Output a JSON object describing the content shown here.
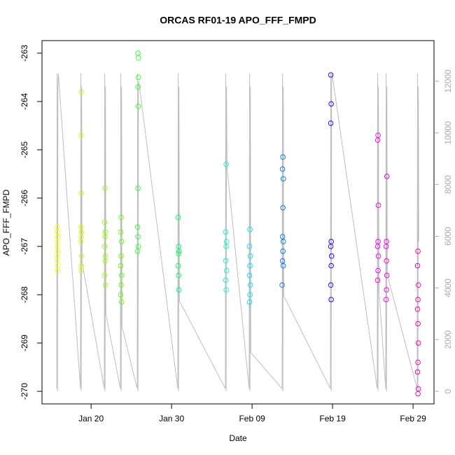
{
  "chart_data": {
    "type": "scatter",
    "title": "ORCAS RF01-19 APO_FFF_FMPD",
    "x_label": "Date",
    "y_label": "APO_FFF_FMPD",
    "xlim": [
      13.9,
      62.6
    ],
    "xticks": [
      {
        "value": 20,
        "label": "Jan 20"
      },
      {
        "value": 30,
        "label": "Jan 30"
      },
      {
        "value": 40,
        "label": "Feb 09"
      },
      {
        "value": 50,
        "label": "Feb 19"
      },
      {
        "value": 60,
        "label": "Feb 29"
      }
    ],
    "ylim": [
      -270.26,
      -262.74
    ],
    "yticks": [
      -263,
      -264,
      -265,
      -266,
      -267,
      -268,
      -269,
      -270
    ],
    "y2lim": [
      -488,
      13571
    ],
    "y2ticks": [
      0,
      2000,
      4000,
      6000,
      8000,
      10000,
      12000
    ],
    "series": [
      {
        "type": "line",
        "axis": "y2",
        "color": "#bebebe",
        "x": [
          15.73,
          15.78,
          15.83,
          15.88,
          15.93,
          18.68,
          18.73,
          18.78,
          18.83,
          18.88,
          21.64,
          21.69,
          21.74,
          21.79,
          21.84,
          23.64,
          23.69,
          23.74,
          23.79,
          23.84,
          25.73,
          25.78,
          25.83,
          25.88,
          25.93,
          30.77,
          30.82,
          30.87,
          30.92,
          30.97,
          36.68,
          36.73,
          36.78,
          36.83,
          36.88,
          39.64,
          39.69,
          39.74,
          39.79,
          39.84,
          43.73,
          43.78,
          43.83,
          43.88,
          43.93,
          49.73,
          49.78,
          49.83,
          49.88,
          49.93,
          55.55,
          55.6,
          55.65,
          55.7,
          55.75,
          56.6,
          56.65,
          56.7,
          56.75,
          56.8,
          60.51,
          60.56,
          60.61,
          60.66,
          60.71
        ],
        "values": [
          100,
          12300,
          0,
          11800,
          12300,
          100,
          12300,
          0,
          11800,
          5000,
          100,
          12300,
          0,
          11800,
          3000,
          100,
          12300,
          0,
          11800,
          2500,
          100,
          12300,
          0,
          11800,
          12000,
          100,
          12300,
          0,
          11800,
          3500,
          100,
          12300,
          0,
          11800,
          8700,
          100,
          12300,
          0,
          11800,
          1500,
          100,
          12300,
          0,
          11800,
          3700,
          100,
          12300,
          0,
          11800,
          12300,
          100,
          12300,
          0,
          11800,
          4000,
          100,
          12300,
          0,
          11800,
          4500,
          100,
          12300,
          0,
          11800,
          5800
        ]
      },
      {
        "type": "scatter",
        "color": "#f0ff00",
        "x": [
          15.78,
          15.83,
          15.88,
          15.78,
          15.83,
          15.88,
          15.78,
          15.83,
          15.88,
          15.83
        ],
        "values": [
          -266.6,
          -266.7,
          -266.8,
          -266.9,
          -267.0,
          -267.1,
          -267.2,
          -267.3,
          -267.4,
          -267.5
        ]
      },
      {
        "type": "scatter",
        "color": "#ccff00",
        "x": [
          18.78,
          18.73,
          18.78,
          18.73,
          18.83,
          18.78,
          18.73,
          18.83,
          18.78,
          18.73
        ],
        "values": [
          -263.8,
          -264.7,
          -265.9,
          -266.6,
          -266.7,
          -266.8,
          -266.9,
          -267.2,
          -267.4,
          -267.5
        ]
      },
      {
        "type": "scatter",
        "color": "#99ff00",
        "x": [
          21.74,
          21.69,
          21.79,
          21.74,
          21.69,
          21.79,
          21.74,
          21.69,
          21.79
        ],
        "values": [
          -265.8,
          -266.5,
          -266.7,
          -266.8,
          -267.0,
          -267.2,
          -267.3,
          -267.6,
          -267.8
        ]
      },
      {
        "type": "scatter",
        "color": "#66ff00",
        "x": [
          23.74,
          23.69,
          23.79,
          23.74,
          23.69,
          23.79,
          23.74,
          23.69,
          23.79
        ],
        "values": [
          -266.4,
          -266.7,
          -266.9,
          -267.2,
          -267.4,
          -267.6,
          -267.8,
          -268.0,
          -268.15
        ]
      },
      {
        "type": "scatter",
        "color": "#33ff33",
        "x": [
          25.83,
          25.88,
          25.88,
          25.83,
          25.88,
          25.83,
          25.78,
          25.83,
          25.88,
          25.78
        ],
        "values": [
          -263.0,
          -263.1,
          -263.5,
          -263.7,
          -264.1,
          -265.8,
          -266.6,
          -266.8,
          -267.0,
          -267.1
        ]
      },
      {
        "type": "scatter",
        "color": "#00ff66",
        "x": [
          30.82,
          30.87,
          30.92,
          30.87,
          30.82,
          30.87,
          30.92
        ],
        "values": [
          -266.4,
          -267.0,
          -267.1,
          -267.15,
          -267.4,
          -267.6,
          -267.9
        ]
      },
      {
        "type": "scatter",
        "color": "#00ffcc",
        "x": [
          36.78,
          36.73,
          36.83,
          36.78,
          36.73,
          36.83,
          36.73,
          36.78
        ],
        "values": [
          -265.3,
          -266.7,
          -266.9,
          -267.0,
          -267.3,
          -267.5,
          -267.7,
          -267.9
        ]
      },
      {
        "type": "scatter",
        "color": "#00e5ff",
        "x": [
          39.74,
          39.69,
          39.79,
          39.74,
          39.69,
          39.79,
          39.74,
          39.69
        ],
        "values": [
          -266.65,
          -267.0,
          -267.2,
          -267.4,
          -267.6,
          -267.8,
          -268.0,
          -268.15
        ]
      },
      {
        "type": "scatter",
        "color": "#0080ff",
        "x": [
          43.83,
          43.78,
          43.88,
          43.83,
          43.78,
          43.88,
          43.83,
          43.78,
          43.88,
          43.73
        ],
        "values": [
          -265.15,
          -265.4,
          -265.6,
          -266.2,
          -266.8,
          -266.9,
          -267.1,
          -267.3,
          -267.4,
          -267.8
        ]
      },
      {
        "type": "scatter",
        "color": "#3300ff",
        "x": [
          49.78,
          49.83,
          49.78,
          49.83,
          49.78,
          49.88,
          49.83,
          49.78,
          49.83
        ],
        "values": [
          -263.45,
          -264.05,
          -264.45,
          -266.9,
          -267.0,
          -267.2,
          -267.4,
          -267.8,
          -268.1
        ]
      },
      {
        "type": "scatter",
        "color": "#ff00ff",
        "x": [
          55.65,
          55.6,
          55.7,
          55.65,
          55.6,
          55.7,
          55.65,
          55.6
        ],
        "values": [
          -264.7,
          -264.8,
          -266.15,
          -266.9,
          -267.0,
          -267.2,
          -267.5,
          -267.7
        ]
      },
      {
        "type": "scatter",
        "color": "#ff00dd",
        "x": [
          56.75,
          56.7,
          56.65,
          56.7,
          56.75,
          56.7,
          56.65
        ],
        "values": [
          -265.55,
          -266.9,
          -267.0,
          -267.3,
          -267.6,
          -267.9,
          -268.1
        ]
      },
      {
        "type": "scatter",
        "color": "#ff00aa",
        "x": [
          60.61,
          60.56,
          60.66,
          60.61,
          60.56,
          60.61,
          60.66,
          60.61,
          60.56,
          60.66,
          60.61
        ],
        "values": [
          -267.1,
          -267.4,
          -267.8,
          -268.1,
          -268.3,
          -268.6,
          -269.0,
          -269.4,
          -269.6,
          -269.95,
          -270.05
        ]
      }
    ]
  }
}
